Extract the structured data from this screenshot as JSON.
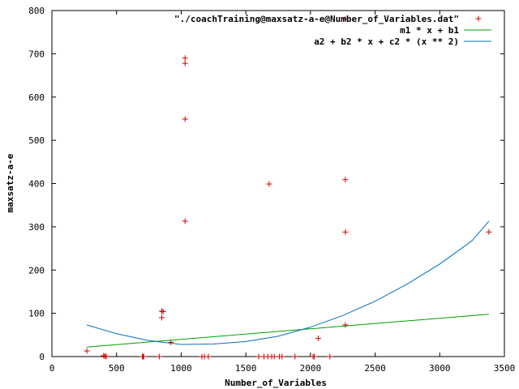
{
  "chart_data": {
    "type": "scatter",
    "xlabel": "Number_of_Variables",
    "ylabel": "maxsatz-a-e",
    "xlim": [
      0,
      3500
    ],
    "ylim": [
      0,
      800
    ],
    "xticks": [
      0,
      500,
      1000,
      1500,
      2000,
      2500,
      3000,
      3500
    ],
    "yticks": [
      0,
      100,
      200,
      300,
      400,
      500,
      600,
      700,
      800
    ],
    "grid": false,
    "legend_position": "top-right",
    "series": [
      {
        "name": "\"./coachTraining@maxsatz-a-e@Number_of_Variables.dat\"",
        "kind": "points",
        "color": "#cc0000",
        "points": [
          [
            270,
            13
          ],
          [
            400,
            2
          ],
          [
            410,
            1
          ],
          [
            420,
            0
          ],
          [
            700,
            0
          ],
          [
            705,
            0
          ],
          [
            710,
            0
          ],
          [
            830,
            0
          ],
          [
            850,
            105
          ],
          [
            860,
            104
          ],
          [
            850,
            90
          ],
          [
            920,
            33
          ],
          [
            1030,
            690
          ],
          [
            1030,
            678
          ],
          [
            1030,
            549
          ],
          [
            1030,
            313
          ],
          [
            1160,
            0
          ],
          [
            1180,
            0
          ],
          [
            1210,
            0
          ],
          [
            1600,
            0
          ],
          [
            1640,
            0
          ],
          [
            1670,
            0
          ],
          [
            1700,
            0
          ],
          [
            1720,
            0
          ],
          [
            1760,
            0
          ],
          [
            1780,
            0
          ],
          [
            1880,
            0
          ],
          [
            2020,
            0
          ],
          [
            2030,
            0
          ],
          [
            2150,
            0
          ],
          [
            1680,
            399
          ],
          [
            2060,
            42
          ],
          [
            2270,
            409
          ],
          [
            2270,
            288
          ],
          [
            2270,
            73
          ],
          [
            2270,
            780
          ],
          [
            3380,
            288
          ]
        ]
      },
      {
        "name": "m1 * x + b1",
        "kind": "line",
        "color": "#00a000",
        "x": [
          270,
          3380
        ],
        "y": [
          22,
          98
        ]
      },
      {
        "name": "a2 + b2 * x + c2 * (x ** 2)",
        "kind": "line",
        "color": "#0070c0",
        "x": [
          270,
          500,
          750,
          1000,
          1250,
          1500,
          1750,
          2000,
          2250,
          2500,
          2750,
          3000,
          3250,
          3380
        ],
        "y": [
          73,
          53,
          37,
          28,
          29,
          35,
          47,
          68,
          95,
          128,
          168,
          214,
          268,
          313
        ]
      }
    ]
  }
}
